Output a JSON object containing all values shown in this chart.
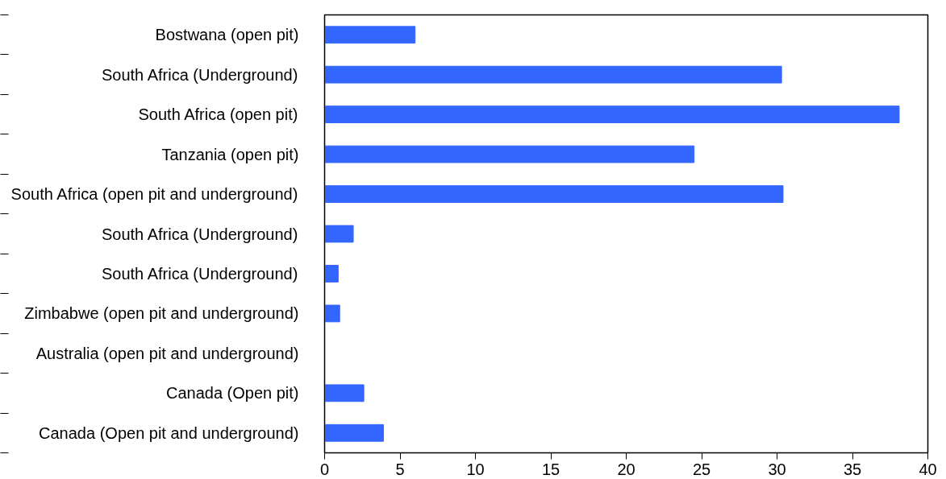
{
  "chart_data": {
    "type": "bar",
    "orientation": "horizontal",
    "categories": [
      "Bostwana (open pit)",
      "South Africa (Underground)",
      "South Africa (open pit)",
      "Tanzania (open pit)",
      "South Africa (open pit and underground)",
      "South Africa (Underground)",
      "South Africa (Underground)",
      "Zimbabwe (open pit and underground)",
      "Australia (open pit and underground)",
      "Canada (Open pit)",
      "Canada (Open pit and underground)"
    ],
    "values": [
      6.0,
      30.3,
      38.1,
      24.5,
      30.4,
      1.9,
      0.9,
      1.0,
      0,
      2.6,
      3.9
    ],
    "color": "#3366ff",
    "xlim": [
      0,
      40
    ],
    "xticks": [
      0,
      5,
      10,
      15,
      20,
      25,
      30,
      35,
      40
    ],
    "grid": false
  }
}
